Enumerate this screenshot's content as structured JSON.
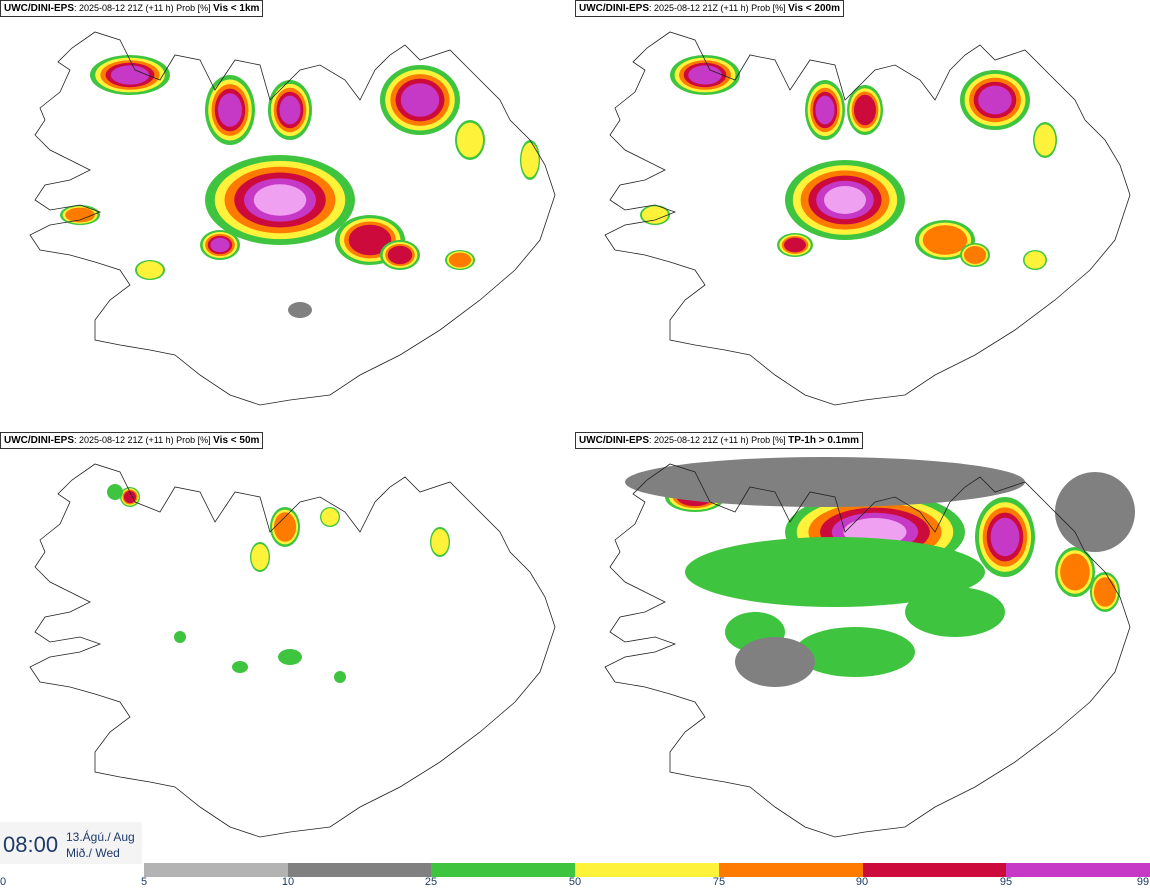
{
  "panels": [
    {
      "model": "UWC/DINI-EPS",
      "run": ": 2025-08-12 21Z (+11 h) Prob [%] ",
      "variable": "Vis < 1km"
    },
    {
      "model": "UWC/DINI-EPS",
      "run": ": 2025-08-12 21Z (+11 h) Prob [%] ",
      "variable": "Vis < 200m"
    },
    {
      "model": "UWC/DINI-EPS",
      "run": ": 2025-08-12 21Z (+11 h) Prob [%] ",
      "variable": "Vis < 50m"
    },
    {
      "model": "UWC/DINI-EPS",
      "run": ": 2025-08-12 21Z (+11 h) Prob [%] ",
      "variable": "TP-1h > 0.1mm"
    }
  ],
  "valid_time": {
    "time": "08:00",
    "date": "13.Ágú./ Aug",
    "weekday": "Mið./ Wed"
  },
  "colorbar": {
    "ticks": [
      "0",
      "5",
      "10",
      "25",
      "50",
      "75",
      "90",
      "95",
      "99"
    ],
    "colors": [
      "#b3b3b3",
      "#808080",
      "#3ec43e",
      "#fff23a",
      "#ff7b00",
      "#cc0a3c",
      "#c638c6"
    ]
  },
  "palette": {
    "light_grey": "#b3b3b3",
    "dark_grey": "#808080",
    "green": "#3ec43e",
    "yellow": "#fff23a",
    "orange": "#ff7b00",
    "red": "#cc0a3c",
    "magenta": "#c638c6",
    "pink": "#f0a0f0",
    "text_blue": "#1e3b6a"
  }
}
